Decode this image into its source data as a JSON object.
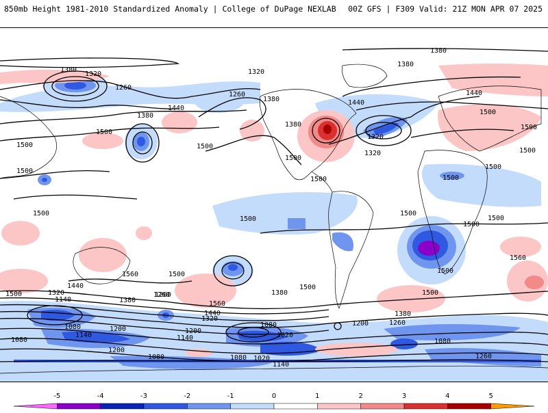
{
  "header": {
    "left": "850mb Height 1981-2010 Standardized Anomaly | College of DuPage NEXLAB",
    "right": "00Z GFS | F309 Valid: 21Z MON APR 07 2025"
  },
  "contour_labels": [
    "1380",
    "1320",
    "1260",
    "1380",
    "1320",
    "1260",
    "1380",
    "1500",
    "1440",
    "1380",
    "1320",
    "1440",
    "1500",
    "1500",
    "1500",
    "1320",
    "1500",
    "1500",
    "1440",
    "1380",
    "1500",
    "1500",
    "1500",
    "1560",
    "1500",
    "1440",
    "1380",
    "1320",
    "1260",
    "1560",
    "1500",
    "1500",
    "1440",
    "1380",
    "1320",
    "1140",
    "1260",
    "1020",
    "1080",
    "1140",
    "1200",
    "1140",
    "1080",
    "1200",
    "1080",
    "1020",
    "1140",
    "1080",
    "1200",
    "1200",
    "1260",
    "1080",
    "1080",
    "1260",
    "1380",
    "1500",
    "1500",
    "1500",
    "1500",
    "1500",
    "1560",
    "1500",
    "1500",
    "1380",
    "1500",
    "1500"
  ],
  "colorbar": {
    "ticks": [
      "-5",
      "-4",
      "-3",
      "-2",
      "-1",
      "0",
      "1",
      "2",
      "3",
      "4",
      "5"
    ],
    "colors": [
      "#ff66ff",
      "#8a00c8",
      "#0a22b5",
      "#2f59e0",
      "#6f95ef",
      "#c4dcfb",
      "#ffffff",
      "#fcc6c6",
      "#f28a8a",
      "#d93030",
      "#a80000",
      "#ff9a00"
    ]
  }
}
